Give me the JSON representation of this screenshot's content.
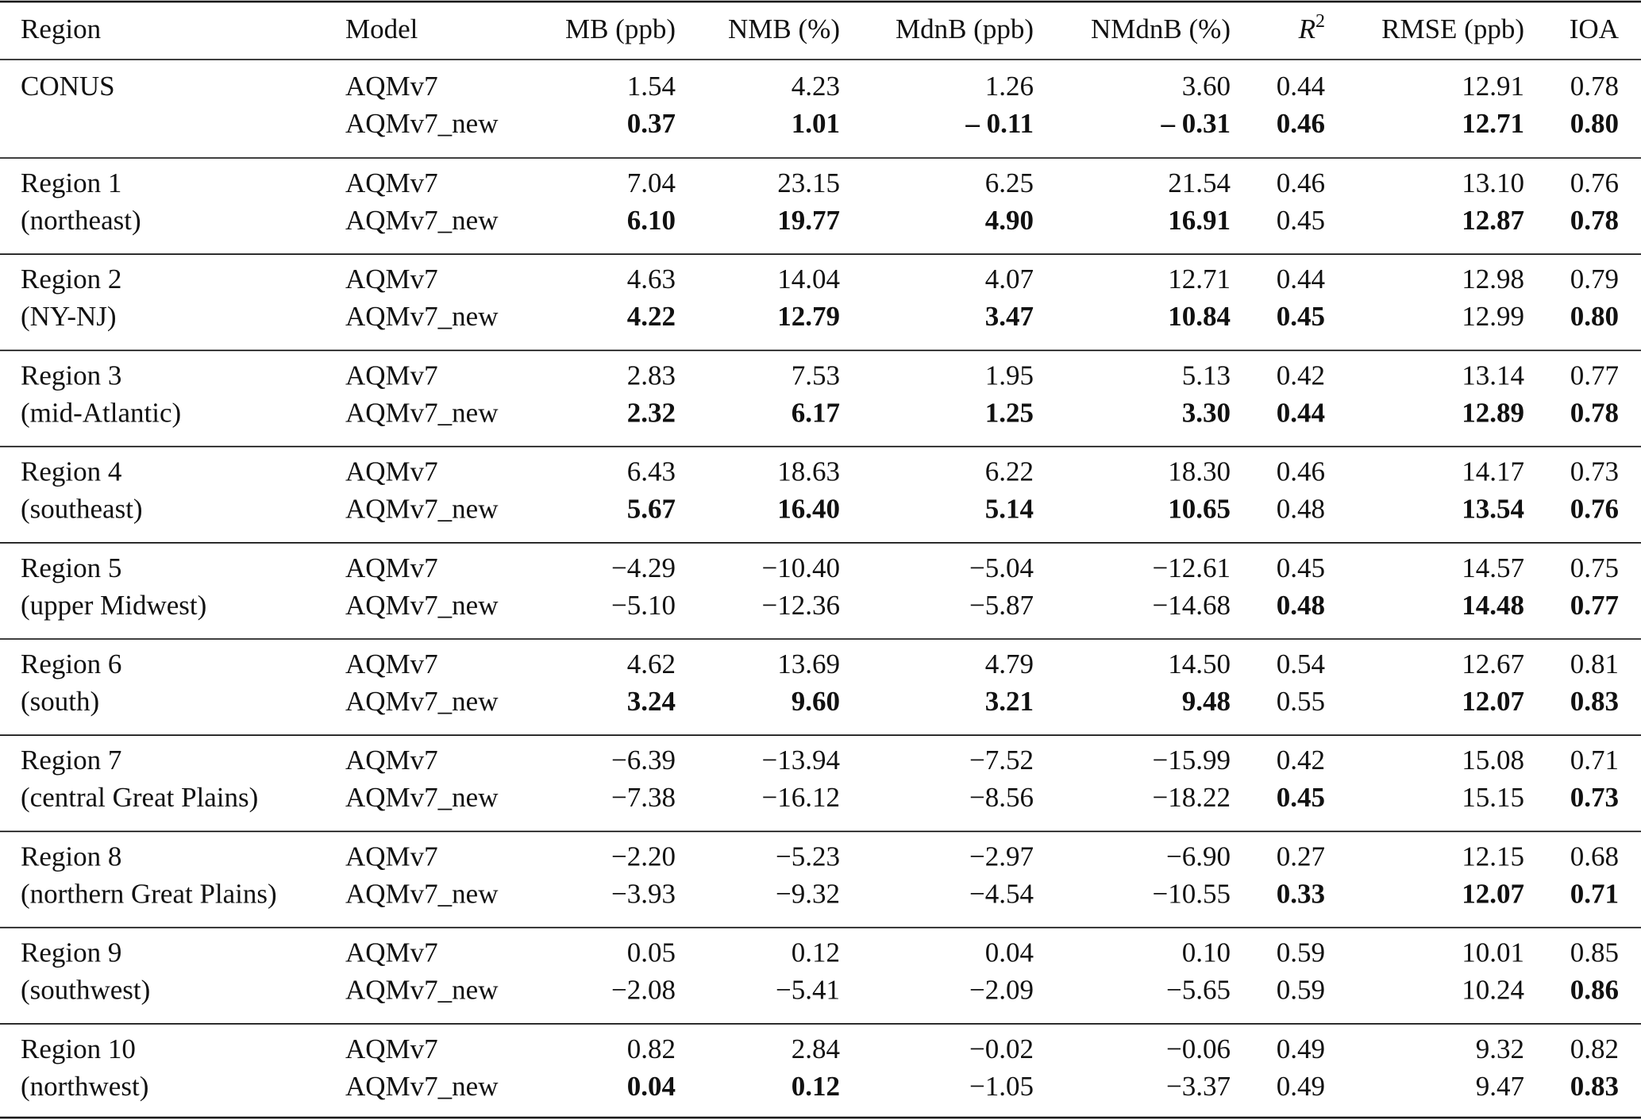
{
  "table": {
    "header": [
      "Region",
      "Model",
      "MB (ppb)",
      "NMB (%)",
      "MdnB (ppb)",
      "NMdnB (%)",
      {
        "text": "R",
        "sup": "2"
      },
      "RMSE (ppb)",
      "IOA"
    ],
    "groups": [
      {
        "region": [
          "CONUS"
        ],
        "models": [
          {
            "name": "AQMv7",
            "values": [
              "1.54",
              "4.23",
              "1.26",
              "3.60",
              "0.44",
              "12.91",
              "0.78"
            ],
            "bold": []
          },
          {
            "name": "AQMv7_new",
            "values": [
              "0.37",
              "1.01",
              "– 0.11",
              "– 0.31",
              "0.46",
              "12.71",
              "0.80"
            ],
            "bold": [
              0,
              1,
              2,
              3,
              4,
              5,
              6
            ]
          }
        ]
      },
      {
        "region": [
          "Region 1",
          "(northeast)"
        ],
        "models": [
          {
            "name": "AQMv7",
            "values": [
              "7.04",
              "23.15",
              "6.25",
              "21.54",
              "0.46",
              "13.10",
              "0.76"
            ],
            "bold": []
          },
          {
            "name": "AQMv7_new",
            "values": [
              "6.10",
              "19.77",
              "4.90",
              "16.91",
              "0.45",
              "12.87",
              "0.78"
            ],
            "bold": [
              0,
              1,
              2,
              3,
              5,
              6
            ]
          }
        ]
      },
      {
        "region": [
          "Region 2",
          "(NY-NJ)"
        ],
        "models": [
          {
            "name": "AQMv7",
            "values": [
              "4.63",
              "14.04",
              "4.07",
              "12.71",
              "0.44",
              "12.98",
              "0.79"
            ],
            "bold": []
          },
          {
            "name": "AQMv7_new",
            "values": [
              "4.22",
              "12.79",
              "3.47",
              "10.84",
              "0.45",
              "12.99",
              "0.80"
            ],
            "bold": [
              0,
              1,
              2,
              3,
              4,
              6
            ]
          }
        ]
      },
      {
        "region": [
          "Region 3",
          "(mid-Atlantic)"
        ],
        "models": [
          {
            "name": "AQMv7",
            "values": [
              "2.83",
              "7.53",
              "1.95",
              "5.13",
              "0.42",
              "13.14",
              "0.77"
            ],
            "bold": []
          },
          {
            "name": "AQMv7_new",
            "values": [
              "2.32",
              "6.17",
              "1.25",
              "3.30",
              "0.44",
              "12.89",
              "0.78"
            ],
            "bold": [
              0,
              1,
              2,
              3,
              4,
              5,
              6
            ]
          }
        ]
      },
      {
        "region": [
          "Region 4",
          "(southeast)"
        ],
        "models": [
          {
            "name": "AQMv7",
            "values": [
              "6.43",
              "18.63",
              "6.22",
              "18.30",
              "0.46",
              "14.17",
              "0.73"
            ],
            "bold": []
          },
          {
            "name": "AQMv7_new",
            "values": [
              "5.67",
              "16.40",
              "5.14",
              "10.65",
              "0.48",
              "13.54",
              "0.76"
            ],
            "bold": [
              0,
              1,
              2,
              3,
              5,
              6
            ]
          }
        ]
      },
      {
        "region": [
          "Region 5",
          "(upper Midwest)"
        ],
        "models": [
          {
            "name": "AQMv7",
            "values": [
              "−4.29",
              "−10.40",
              "−5.04",
              "−12.61",
              "0.45",
              "14.57",
              "0.75"
            ],
            "bold": []
          },
          {
            "name": "AQMv7_new",
            "values": [
              "−5.10",
              "−12.36",
              "−5.87",
              "−14.68",
              "0.48",
              "14.48",
              "0.77"
            ],
            "bold": [
              4,
              5,
              6
            ]
          }
        ]
      },
      {
        "region": [
          "Region 6",
          "(south)"
        ],
        "models": [
          {
            "name": "AQMv7",
            "values": [
              "4.62",
              "13.69",
              "4.79",
              "14.50",
              "0.54",
              "12.67",
              "0.81"
            ],
            "bold": []
          },
          {
            "name": "AQMv7_new",
            "values": [
              "3.24",
              "9.60",
              "3.21",
              "9.48",
              "0.55",
              "12.07",
              "0.83"
            ],
            "bold": [
              0,
              1,
              2,
              3,
              5,
              6
            ]
          }
        ]
      },
      {
        "region": [
          "Region 7",
          "(central Great Plains)"
        ],
        "models": [
          {
            "name": "AQMv7",
            "values": [
              "−6.39",
              "−13.94",
              "−7.52",
              "−15.99",
              "0.42",
              "15.08",
              "0.71"
            ],
            "bold": []
          },
          {
            "name": "AQMv7_new",
            "values": [
              "−7.38",
              "−16.12",
              "−8.56",
              "−18.22",
              "0.45",
              "15.15",
              "0.73"
            ],
            "bold": [
              4,
              6
            ]
          }
        ]
      },
      {
        "region": [
          "Region 8",
          "(northern Great Plains)"
        ],
        "models": [
          {
            "name": "AQMv7",
            "values": [
              "−2.20",
              "−5.23",
              "−2.97",
              "−6.90",
              "0.27",
              "12.15",
              "0.68"
            ],
            "bold": []
          },
          {
            "name": "AQMv7_new",
            "values": [
              "−3.93",
              "−9.32",
              "−4.54",
              "−10.55",
              "0.33",
              "12.07",
              "0.71"
            ],
            "bold": [
              4,
              5,
              6
            ]
          }
        ]
      },
      {
        "region": [
          "Region 9",
          "(southwest)"
        ],
        "models": [
          {
            "name": "AQMv7",
            "values": [
              "0.05",
              "0.12",
              "0.04",
              "0.10",
              "0.59",
              "10.01",
              "0.85"
            ],
            "bold": []
          },
          {
            "name": "AQMv7_new",
            "values": [
              "−2.08",
              "−5.41",
              "−2.09",
              "−5.65",
              "0.59",
              "10.24",
              "0.86"
            ],
            "bold": [
              6
            ]
          }
        ]
      },
      {
        "region": [
          "Region 10",
          "(northwest)"
        ],
        "models": [
          {
            "name": "AQMv7",
            "values": [
              "0.82",
              "2.84",
              "−0.02",
              "−0.06",
              "0.49",
              "9.32",
              "0.82"
            ],
            "bold": []
          },
          {
            "name": "AQMv7_new",
            "values": [
              "0.04",
              "0.12",
              "−1.05",
              "−3.37",
              "0.49",
              "9.47",
              "0.83"
            ],
            "bold": [
              0,
              1,
              6
            ]
          }
        ]
      }
    ]
  }
}
